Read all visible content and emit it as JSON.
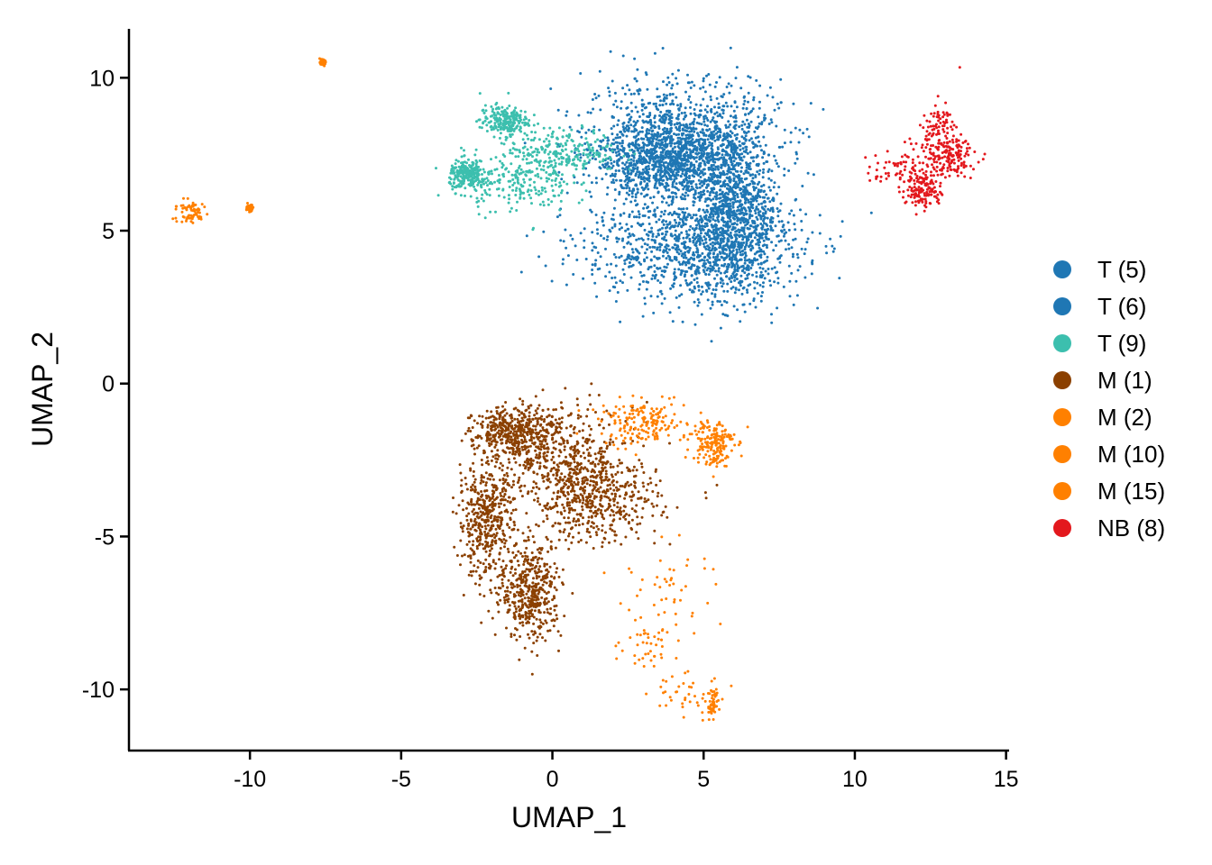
{
  "chart_data": {
    "type": "scatter",
    "title": "",
    "xlabel": "UMAP_1",
    "ylabel": "UMAP_2",
    "xlim": [
      -14,
      15.1
    ],
    "ylim": [
      -12,
      11.6
    ],
    "xticks": [
      -10,
      -5,
      0,
      5,
      10,
      15
    ],
    "yticks": [
      -10,
      -5,
      0,
      5,
      10
    ],
    "xtick_labels": [
      "-10",
      "-5",
      "0",
      "5",
      "10",
      "15"
    ],
    "ytick_labels": [
      "-10",
      "-5",
      "0",
      "5",
      "10"
    ],
    "grid": false,
    "legend_position": "right",
    "series": [
      {
        "name": "T (5)",
        "color": "#1F77B4",
        "approx_points": 1800,
        "regions": [
          {
            "center": [
              4.3,
              8.0
            ],
            "spread": [
              1.6,
              1.0
            ]
          },
          {
            "center": [
              3.8,
              7.3
            ],
            "spread": [
              1.2,
              0.6
            ]
          }
        ]
      },
      {
        "name": "T (6)",
        "color": "#1F77B4",
        "approx_points": 2000,
        "regions": [
          {
            "center": [
              4.6,
              4.5
            ],
            "spread": [
              1.8,
              0.9
            ]
          },
          {
            "center": [
              6.0,
              5.6
            ],
            "spread": [
              0.7,
              1.4
            ]
          }
        ]
      },
      {
        "name": "T (9)",
        "color": "#3CBFAE",
        "approx_points": 900,
        "regions": [
          {
            "center": [
              -1.6,
              8.6
            ],
            "spread": [
              0.4,
              0.25
            ]
          },
          {
            "center": [
              0.4,
              7.6
            ],
            "spread": [
              0.9,
              0.35
            ]
          },
          {
            "center": [
              -1.2,
              6.6
            ],
            "spread": [
              0.9,
              0.5
            ]
          },
          {
            "center": [
              -2.8,
              6.8
            ],
            "spread": [
              0.3,
              0.25
            ]
          }
        ]
      },
      {
        "name": "M (1)",
        "color": "#8B4000",
        "approx_points": 2200,
        "regions": [
          {
            "center": [
              0.3,
              -2.5
            ],
            "spread": [
              1.2,
              0.9
            ]
          },
          {
            "center": [
              -1.2,
              -1.6
            ],
            "spread": [
              0.7,
              0.4
            ]
          },
          {
            "center": [
              -2.2,
              -4.5
            ],
            "spread": [
              0.45,
              1.0
            ]
          },
          {
            "center": [
              -0.7,
              -6.8
            ],
            "spread": [
              0.5,
              0.8
            ]
          },
          {
            "center": [
              1.5,
              -3.8
            ],
            "spread": [
              1.0,
              0.7
            ]
          }
        ]
      },
      {
        "name": "M (2)",
        "color": "#FF8000",
        "approx_points": 350,
        "regions": [
          {
            "center": [
              3.0,
              -1.3
            ],
            "spread": [
              0.7,
              0.35
            ]
          },
          {
            "center": [
              5.3,
              -1.9
            ],
            "spread": [
              0.35,
              0.4
            ]
          }
        ]
      },
      {
        "name": "M (10)",
        "color": "#FF8000",
        "approx_points": 200,
        "regions": [
          {
            "center": [
              -12.0,
              5.6
            ],
            "spread": [
              0.3,
              0.2
            ]
          },
          {
            "center": [
              -10.0,
              5.75
            ],
            "spread": [
              0.05,
              0.05
            ]
          },
          {
            "center": [
              -7.6,
              10.5
            ],
            "spread": [
              0.04,
              0.04
            ]
          }
        ]
      },
      {
        "name": "M (15)",
        "color": "#FF8000",
        "approx_points": 180,
        "regions": [
          {
            "center": [
              3.8,
              -6.6
            ],
            "spread": [
              0.9,
              0.7
            ]
          },
          {
            "center": [
              3.3,
              -8.7
            ],
            "spread": [
              0.5,
              0.6
            ]
          },
          {
            "center": [
              4.3,
              -10.2
            ],
            "spread": [
              0.8,
              0.35
            ]
          },
          {
            "center": [
              5.3,
              -10.5
            ],
            "spread": [
              0.08,
              0.3
            ]
          }
        ]
      },
      {
        "name": "NB (8)",
        "color": "#E3181D",
        "approx_points": 450,
        "regions": [
          {
            "center": [
              12.8,
              8.2
            ],
            "spread": [
              0.35,
              0.5
            ]
          },
          {
            "center": [
              13.2,
              7.4
            ],
            "spread": [
              0.4,
              0.3
            ]
          },
          {
            "center": [
              11.8,
              7.0
            ],
            "spread": [
              0.6,
              0.35
            ]
          },
          {
            "center": [
              12.3,
              6.3
            ],
            "spread": [
              0.3,
              0.3
            ]
          }
        ]
      }
    ]
  }
}
